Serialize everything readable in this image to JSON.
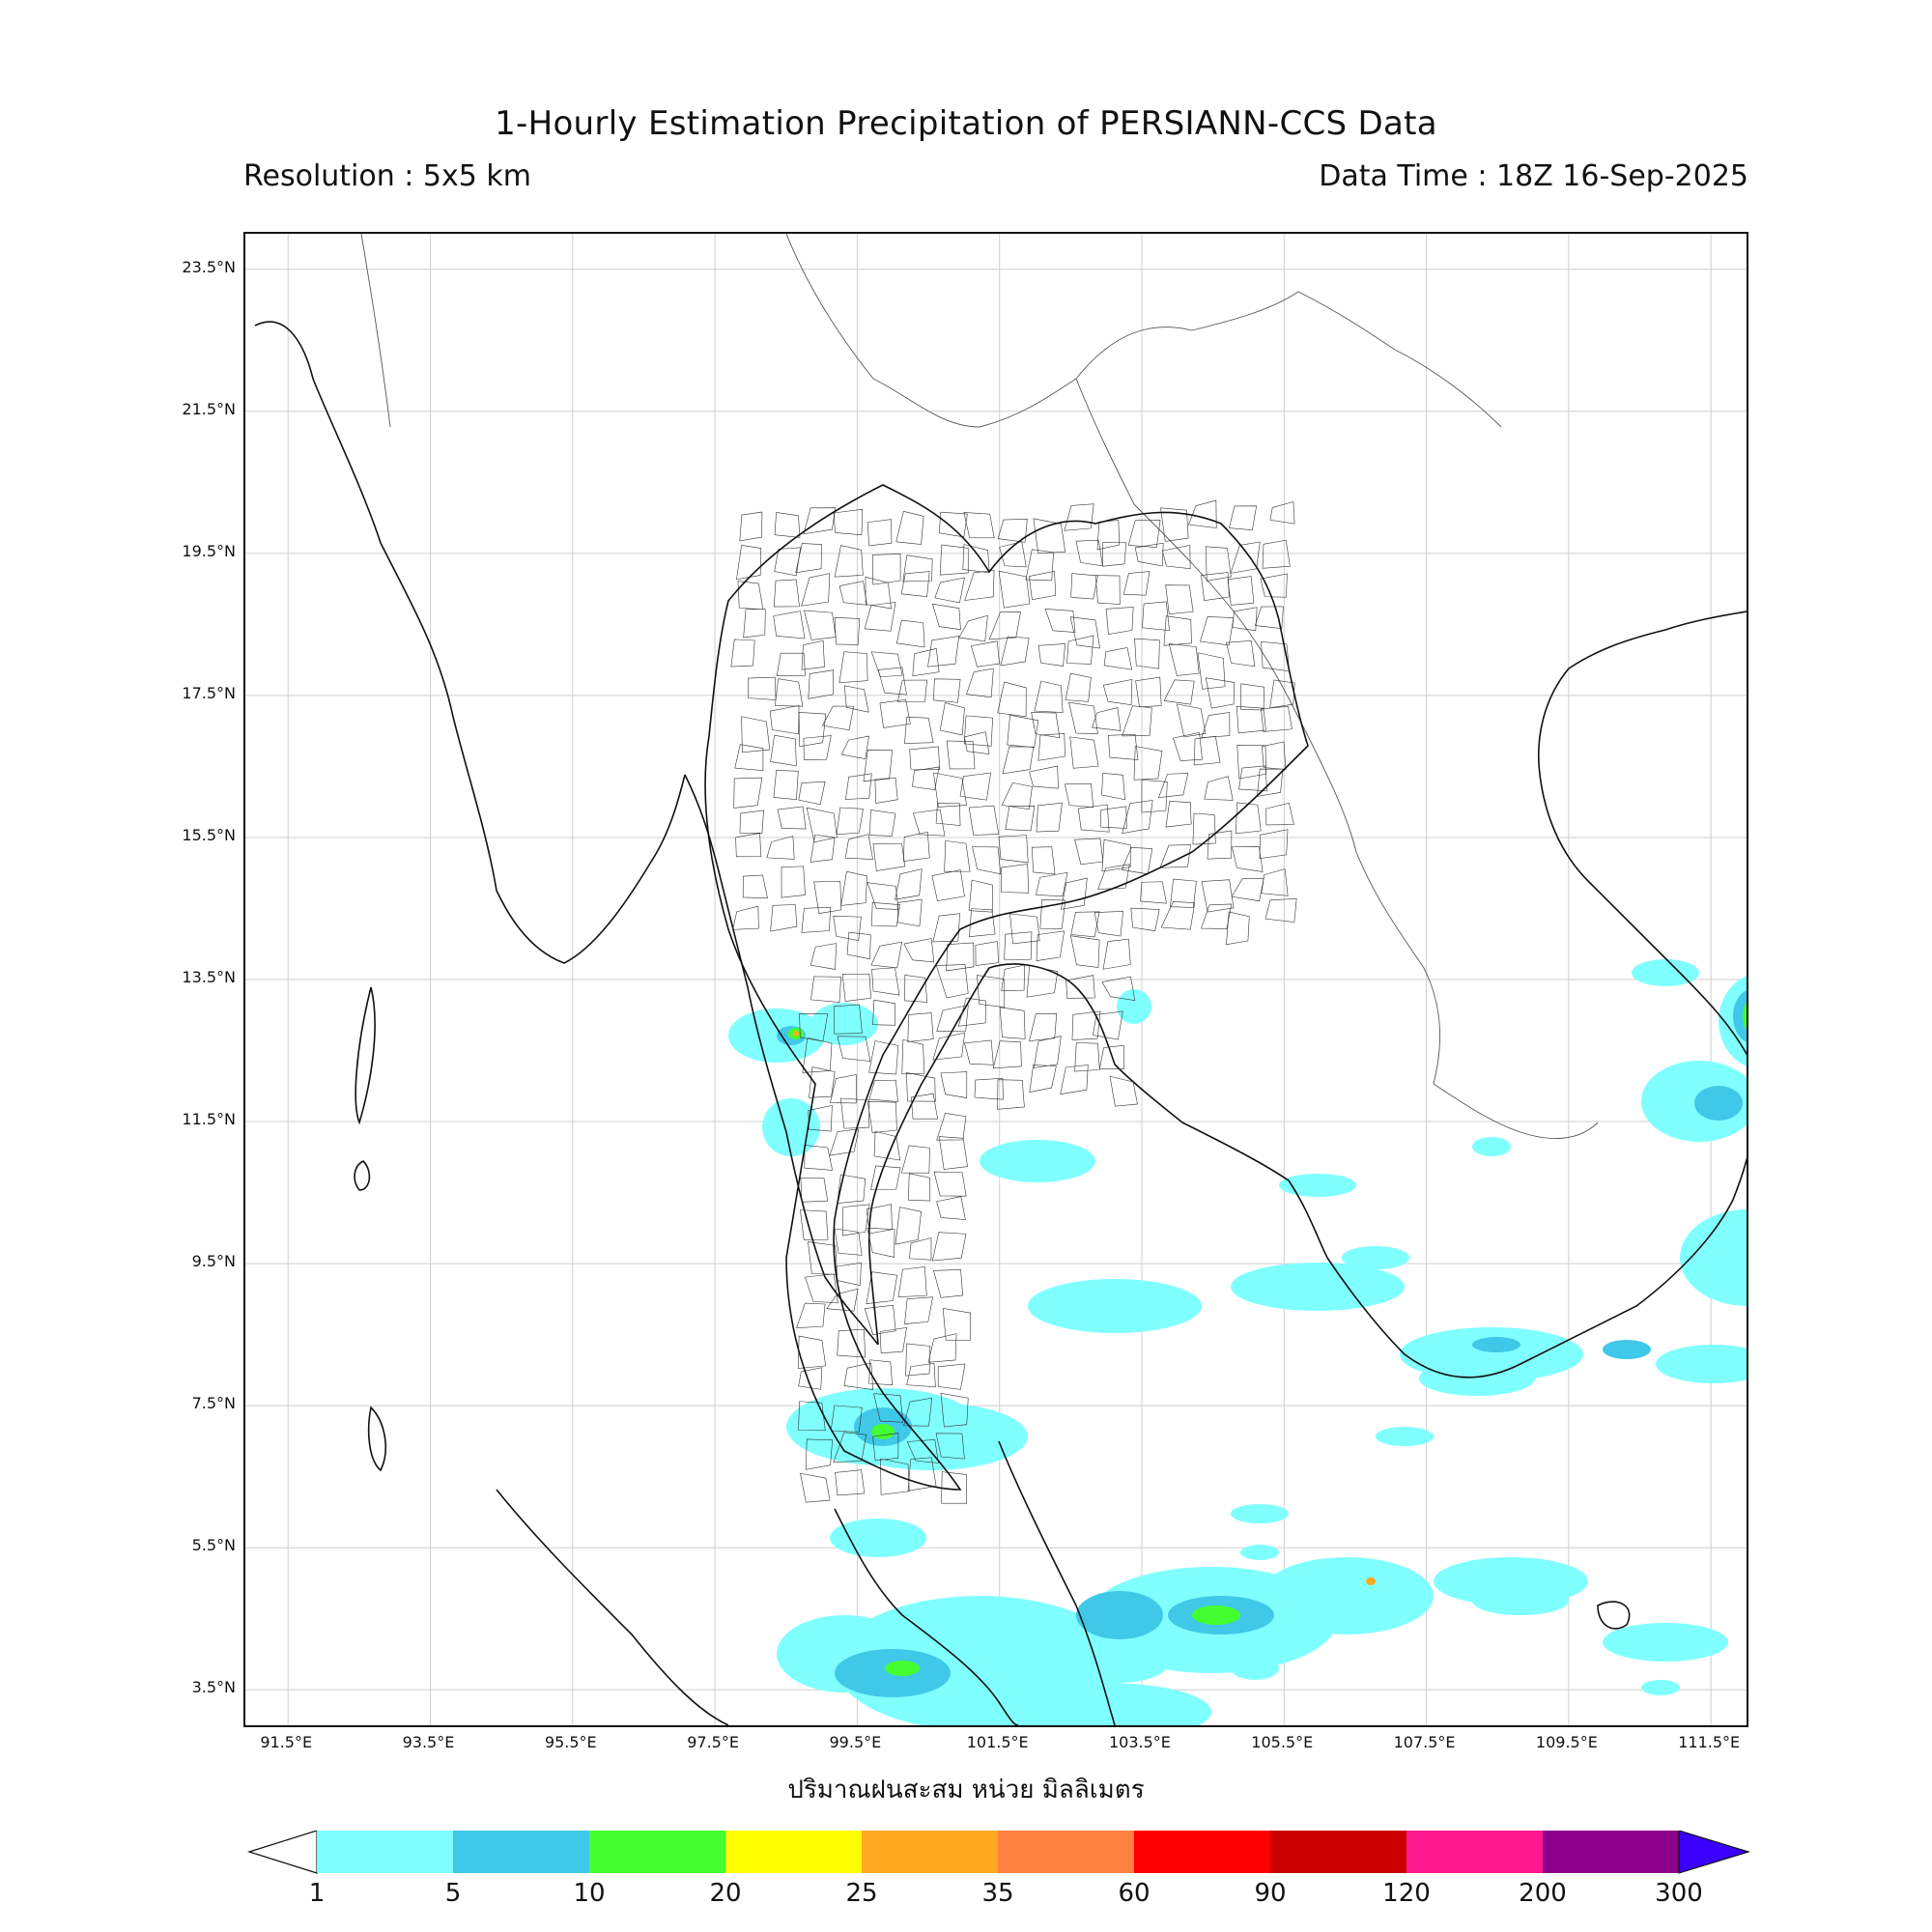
{
  "title": "1-Hourly Estimation Precipitation of PERSIANN-CCS Data",
  "resolution": "Resolution : 5x5 km",
  "data_time": "Data Time : 18Z 16-Sep-2025",
  "xlabel": "ปริมาณฝนสะสม หน่วย มิลลิเมตร",
  "lat_ticks": [
    "23.5°N",
    "21.5°N",
    "19.5°N",
    "17.5°N",
    "15.5°N",
    "13.5°N",
    "11.5°N",
    "9.5°N",
    "7.5°N",
    "5.5°N",
    "3.5°N"
  ],
  "lon_ticks": [
    "91.5°E",
    "93.5°E",
    "95.5°E",
    "97.5°E",
    "99.5°E",
    "101.5°E",
    "103.5°E",
    "105.5°E",
    "107.5°E",
    "109.5°E",
    "111.5°E"
  ],
  "colorbar": {
    "labels": [
      "1",
      "5",
      "10",
      "20",
      "25",
      "35",
      "60",
      "90",
      "120",
      "200",
      "300"
    ],
    "colors": [
      "#80ffff",
      "#40c8e8",
      "#44ff30",
      "#ffff00",
      "#ffa820",
      "#ff8040",
      "#ff0000",
      "#cc0000",
      "#ff1a90",
      "#8c008c",
      "#3c00ff"
    ]
  },
  "extent": {
    "lon": [
      90.9,
      112.0
    ],
    "lat": [
      3.0,
      24.0
    ]
  }
}
